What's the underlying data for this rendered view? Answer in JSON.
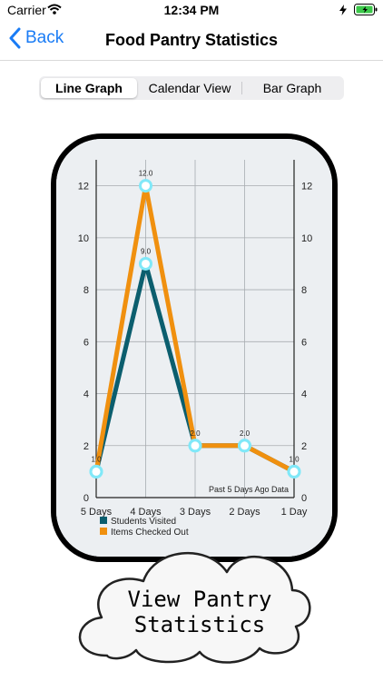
{
  "status_bar": {
    "carrier": "Carrier",
    "time": "12:34 PM",
    "icons": [
      "wifi-icon",
      "charging-icon",
      "battery-icon"
    ]
  },
  "nav": {
    "back_label": "Back",
    "title": "Food Pantry Statistics",
    "accent_color": "#1a7cf5"
  },
  "tabs": [
    {
      "label": "Line Graph",
      "selected": true
    },
    {
      "label": "Calendar View",
      "selected": false
    },
    {
      "label": "Bar Graph",
      "selected": false
    }
  ],
  "chart_data": {
    "type": "line",
    "categories": [
      "5 Days",
      "4 Days",
      "3 Days",
      "2 Days",
      "1 Day"
    ],
    "series": [
      {
        "name": "Students Visited",
        "values": [
          1,
          9,
          2,
          2,
          1
        ],
        "color": "#0b5e6e"
      },
      {
        "name": "Items Checked Out",
        "values": [
          1,
          12,
          2,
          2,
          1
        ],
        "color": "#f0900f"
      }
    ],
    "data_labels": [
      "1.0",
      "9.0",
      "2.0",
      "2.0",
      "1.0"
    ],
    "peak_label": "12.0",
    "annotation": "Past 5 Days Ago Data",
    "y_ticks": [
      "0",
      "2",
      "4",
      "6",
      "8",
      "10",
      "12"
    ],
    "ylim": [
      0,
      13
    ],
    "grid": true,
    "legend_position": "bottom-left",
    "background": "#eceff2",
    "marker_color": "#80e8f8"
  },
  "cloud_button": {
    "label_line1": "View Pantry",
    "label_line2": "Statistics"
  }
}
